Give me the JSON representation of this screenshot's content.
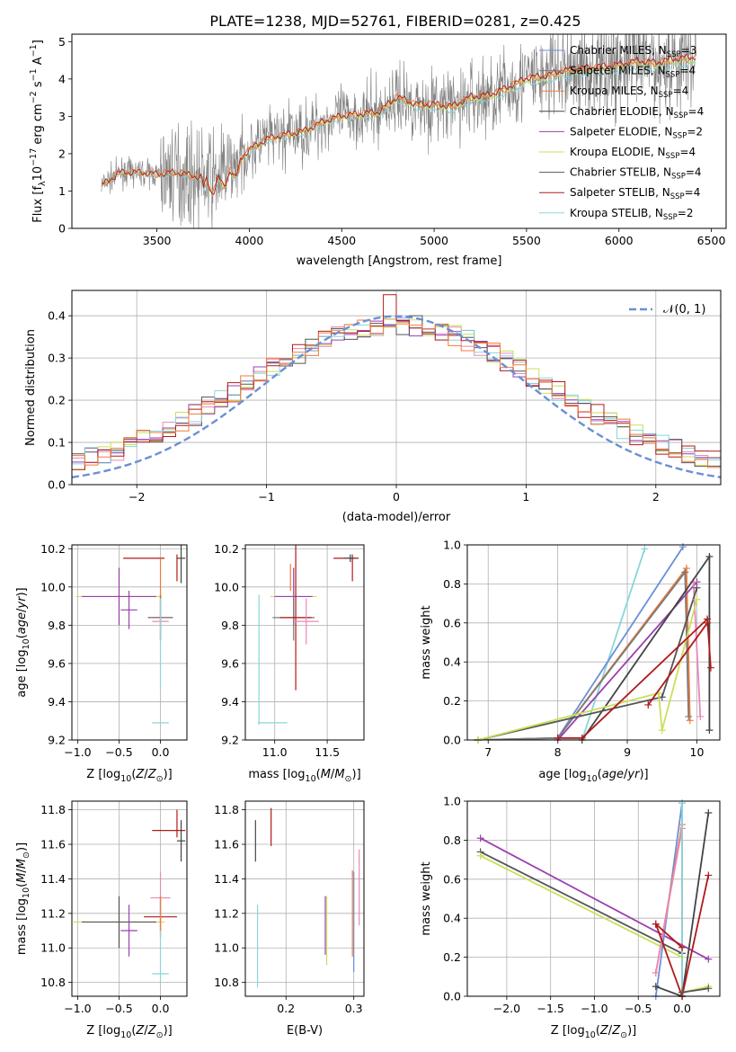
{
  "title": "PLATE=1238, MJD=52761, FIBERID=0281, z=0.425",
  "colors": {
    "Chabrier MILES": "#6b8fd6",
    "Salpeter MILES": "#7b7b7b",
    "Kroupa MILES": "#f07a3a",
    "Chabrier ELODIE": "#444444",
    "Salpeter ELODIE": "#9b3fb0",
    "Kroupa ELODIE": "#c8e05a",
    "Chabrier STELIB": "#555555",
    "Salpeter STELIB": "#b01a1a",
    "Kroupa STELIB": "#88d6dc",
    "pink": "#e888b8",
    "gaussian": "#6b8fd6"
  },
  "chart_data": [
    {
      "id": "spectrum",
      "type": "line",
      "xlabel": "wavelength [Angstrom, rest frame]",
      "ylabel": "Flux [f_λ 10^-17 erg cm^-2 s^-1 A^-1]",
      "xlim": [
        3040,
        6580
      ],
      "ylim": [
        0,
        5.2
      ],
      "xticks": [
        3500,
        4000,
        4500,
        5000,
        5500,
        6000,
        6500
      ],
      "yticks": [
        0,
        1,
        2,
        3,
        4,
        5
      ],
      "legend_position": "top-right",
      "legend": [
        {
          "label": "Chabrier MILES, N",
          "sub": "SSP",
          "suffix": "=3",
          "color": "#6b8fd6"
        },
        {
          "label": "Salpeter MILES, N",
          "sub": "SSP",
          "suffix": "=4",
          "color": "#7b7b7b"
        },
        {
          "label": "Kroupa MILES, N",
          "sub": "SSP",
          "suffix": "=4",
          "color": "#f07a3a"
        },
        {
          "label": "Chabrier ELODIE, N",
          "sub": "SSP",
          "suffix": "=4",
          "color": "#444444"
        },
        {
          "label": "Salpeter ELODIE, N",
          "sub": "SSP",
          "suffix": "=2",
          "color": "#9b3fb0"
        },
        {
          "label": "Kroupa ELODIE, N",
          "sub": "SSP",
          "suffix": "=4",
          "color": "#c8e05a"
        },
        {
          "label": "Chabrier STELIB, N",
          "sub": "SSP",
          "suffix": "=4",
          "color": "#555555"
        },
        {
          "label": "Salpeter STELIB, N",
          "sub": "SSP",
          "suffix": "=4",
          "color": "#b01a1a"
        },
        {
          "label": "Kroupa STELIB, N",
          "sub": "SSP",
          "suffix": "=2",
          "color": "#88d6dc"
        }
      ],
      "continuum": [
        [
          3200,
          1.15
        ],
        [
          3300,
          1.5
        ],
        [
          3400,
          1.5
        ],
        [
          3500,
          1.45
        ],
        [
          3600,
          1.5
        ],
        [
          3700,
          1.4
        ],
        [
          3800,
          1.3
        ],
        [
          3900,
          1.6
        ],
        [
          4000,
          2.1
        ],
        [
          4100,
          2.4
        ],
        [
          4200,
          2.5
        ],
        [
          4300,
          2.6
        ],
        [
          4400,
          2.85
        ],
        [
          4500,
          3.0
        ],
        [
          4600,
          3.05
        ],
        [
          4700,
          3.1
        ],
        [
          4800,
          3.5
        ],
        [
          4900,
          3.3
        ],
        [
          5000,
          3.3
        ],
        [
          5100,
          3.25
        ],
        [
          5200,
          3.5
        ],
        [
          5300,
          3.55
        ],
        [
          5400,
          3.75
        ],
        [
          5500,
          4.0
        ],
        [
          5600,
          4.05
        ],
        [
          5700,
          4.2
        ],
        [
          5800,
          4.25
        ],
        [
          5900,
          4.3
        ],
        [
          6000,
          4.35
        ],
        [
          6100,
          4.45
        ],
        [
          6200,
          4.4
        ],
        [
          6300,
          4.5
        ],
        [
          6420,
          4.55
        ]
      ]
    },
    {
      "id": "residuals",
      "type": "histogram",
      "xlabel": "(data-model)/error",
      "ylabel": "Normed distribution",
      "xlim": [
        -2.5,
        2.5
      ],
      "ylim": [
        0,
        0.46
      ],
      "xticks": [
        -2,
        -1,
        0,
        1,
        2
      ],
      "yticks": [
        0.0,
        0.1,
        0.2,
        0.3,
        0.4
      ],
      "legend": "𝒩(0, 1)",
      "legend_position": "top-right",
      "bin_width": 0.1,
      "bin_start": -2.5
    },
    {
      "id": "age-vs-Z",
      "type": "errorbar",
      "xlabel": "Z [log10(Z/Z⊙)]",
      "ylabel": "age  [log10(age/yr)]",
      "xlim": [
        -1.07,
        0.32
      ],
      "ylim": [
        9.2,
        10.22
      ],
      "xticks": [
        -1.0,
        -0.5,
        0.0
      ],
      "yticks": [
        9.2,
        9.4,
        9.6,
        9.8,
        10.0,
        10.2
      ],
      "points": [
        {
          "x": -0.5,
          "y": 9.95,
          "xerr": 0.52,
          "yerr": 0.15,
          "color": "#c8e05a"
        },
        {
          "x": -0.5,
          "y": 9.95,
          "xerr": 0.45,
          "yerr": 0.15,
          "color": "#9b3fb0"
        },
        {
          "x": -0.38,
          "y": 9.88,
          "xerr": 0.1,
          "yerr": 0.1,
          "color": "#9b3fb0"
        },
        {
          "x": 0.0,
          "y": 9.84,
          "xerr": 0.15,
          "yerr": 0.12,
          "color": "#b01a1a"
        },
        {
          "x": 0.0,
          "y": 9.84,
          "xerr": 0.15,
          "yerr": 0.12,
          "color": "#7b7b7b"
        },
        {
          "x": 0.0,
          "y": 9.82,
          "xerr": 0.1,
          "yerr": 0.1,
          "color": "#e888b8"
        },
        {
          "x": 0.0,
          "y": 9.7,
          "xerr": 0.0,
          "yerr": 0.24,
          "color": "#88d6dc"
        },
        {
          "x": -0.2,
          "y": 10.15,
          "xerr": 0.25,
          "yerr": 0.0,
          "color": "#b01a1a"
        },
        {
          "x": 0.2,
          "y": 10.1,
          "xerr": 0.0,
          "yerr": 0.07,
          "color": "#b01a1a"
        },
        {
          "x": 0.25,
          "y": 10.15,
          "xerr": 0.05,
          "yerr": 0.13,
          "color": "#444444"
        },
        {
          "x": 0.0,
          "y": 10.05,
          "xerr": 0.0,
          "yerr": 0.1,
          "color": "#f07a3a"
        },
        {
          "x": 0.0,
          "y": 9.29,
          "xerr": 0.1,
          "yerr": 0.0,
          "color": "#88d6dc"
        }
      ]
    },
    {
      "id": "age-vs-mass",
      "type": "errorbar",
      "xlabel": "mass [log10(M/M⊙)]",
      "ylabel": "",
      "xlim": [
        10.72,
        11.85
      ],
      "ylim": [
        9.2,
        10.22
      ],
      "xticks": [
        11.0,
        11.5
      ],
      "yticks": [
        9.2,
        9.4,
        9.6,
        9.8,
        10.0,
        10.2
      ],
      "points": [
        {
          "x": 11.18,
          "y": 9.95,
          "xerr": 0.22,
          "yerr": 0.15,
          "color": "#c8e05a"
        },
        {
          "x": 11.18,
          "y": 9.95,
          "xerr": 0.18,
          "yerr": 0.15,
          "color": "#9b3fb0"
        },
        {
          "x": 11.18,
          "y": 9.84,
          "xerr": 0.2,
          "yerr": 0.12,
          "color": "#7b7b7b"
        },
        {
          "x": 11.2,
          "y": 9.84,
          "xerr": 0.15,
          "yerr": 0.38,
          "color": "#b01a1a"
        },
        {
          "x": 11.3,
          "y": 9.82,
          "xerr": 0.12,
          "yerr": 0.12,
          "color": "#e888b8"
        },
        {
          "x": 10.85,
          "y": 9.62,
          "xerr": 0.0,
          "yerr": 0.34,
          "color": "#88d6dc"
        },
        {
          "x": 10.98,
          "y": 9.29,
          "xerr": 0.14,
          "yerr": 0.0,
          "color": "#88d6dc"
        },
        {
          "x": 11.68,
          "y": 10.15,
          "xerr": 0.12,
          "yerr": 0.0,
          "color": "#b01a1a"
        },
        {
          "x": 11.74,
          "y": 10.1,
          "xerr": 0.0,
          "yerr": 0.07,
          "color": "#b01a1a"
        },
        {
          "x": 11.72,
          "y": 10.15,
          "xerr": 0.06,
          "yerr": 0.02,
          "color": "#444444"
        },
        {
          "x": 11.15,
          "y": 10.05,
          "xerr": 0.0,
          "yerr": 0.07,
          "color": "#f07a3a"
        }
      ]
    },
    {
      "id": "weight-vs-age",
      "type": "line",
      "xlabel": "age  [log10(age/yr)]",
      "ylabel": "mass weight",
      "xlim": [
        6.7,
        10.33
      ],
      "ylim": [
        0,
        1.0
      ],
      "xticks": [
        7,
        8,
        9,
        10
      ],
      "yticks": [
        0.0,
        0.2,
        0.4,
        0.6,
        0.8,
        1.0
      ],
      "series": [
        {
          "color": "#88d6dc",
          "x": [
            6.85,
            8.35,
            9.25
          ],
          "y": [
            0.0,
            0.0,
            0.98
          ]
        },
        {
          "color": "#6b8fd6",
          "x": [
            6.85,
            8.0,
            9.8
          ],
          "y": [
            0.0,
            0.01,
            0.99
          ]
        },
        {
          "color": "#f07a3a",
          "x": [
            6.85,
            8.0,
            9.85,
            9.9
          ],
          "y": [
            0.0,
            0.01,
            0.88,
            0.1
          ]
        },
        {
          "color": "#7b7b7b",
          "x": [
            6.85,
            8.0,
            9.83,
            9.88
          ],
          "y": [
            0.0,
            0.01,
            0.86,
            0.12
          ]
        },
        {
          "color": "#9b3fb0",
          "x": [
            8.0,
            10.0
          ],
          "y": [
            0.0,
            0.81
          ]
        },
        {
          "color": "#e888b8",
          "x": [
            9.95,
            10.05
          ],
          "y": [
            0.81,
            0.12
          ]
        },
        {
          "color": "#444444",
          "x": [
            8.35,
            10.18,
            10.18
          ],
          "y": [
            0.0,
            0.94,
            0.05
          ]
        },
        {
          "color": "#555555",
          "x": [
            6.85,
            9.5,
            10.0
          ],
          "y": [
            0.0,
            0.22,
            0.78
          ]
        },
        {
          "color": "#c8e05a",
          "x": [
            6.85,
            9.45,
            9.5,
            10.0
          ],
          "y": [
            0.0,
            0.24,
            0.05,
            0.72
          ]
        },
        {
          "color": "#b01a1a",
          "x": [
            8.0,
            8.35,
            10.15,
            10.2
          ],
          "y": [
            0.01,
            0.01,
            0.62,
            0.37
          ]
        },
        {
          "color": "#b01a1a",
          "x": [
            9.3,
            10.15
          ],
          "y": [
            0.18,
            0.6
          ]
        }
      ]
    },
    {
      "id": "mass-vs-Z",
      "type": "errorbar",
      "xlabel": "Z [log10(Z/Z⊙)]",
      "ylabel": "mass [log10(M/M⊙)]",
      "xlim": [
        -1.07,
        0.32
      ],
      "ylim": [
        10.72,
        11.85
      ],
      "xticks": [
        -1.0,
        -0.5,
        0.0
      ],
      "yticks": [
        10.8,
        11.0,
        11.2,
        11.4,
        11.6,
        11.8
      ],
      "points": [
        {
          "x": -0.5,
          "y": 11.15,
          "xerr": 0.55,
          "yerr": 0.15,
          "color": "#c8e05a"
        },
        {
          "x": -0.5,
          "y": 11.15,
          "xerr": 0.45,
          "yerr": 0.15,
          "color": "#555555"
        },
        {
          "x": -0.38,
          "y": 11.1,
          "xerr": 0.1,
          "yerr": 0.15,
          "color": "#9b3fb0"
        },
        {
          "x": 0.0,
          "y": 11.18,
          "xerr": 0.2,
          "yerr": 0.12,
          "color": "#b01a1a"
        },
        {
          "x": 0.0,
          "y": 11.29,
          "xerr": 0.12,
          "yerr": 0.15,
          "color": "#e888b8"
        },
        {
          "x": 0.0,
          "y": 11.05,
          "xerr": 0.0,
          "yerr": 0.25,
          "color": "#88d6dc"
        },
        {
          "x": 0.0,
          "y": 10.85,
          "xerr": 0.1,
          "yerr": 0.0,
          "color": "#88d6dc"
        },
        {
          "x": 0.1,
          "y": 11.68,
          "xerr": 0.2,
          "yerr": 0.0,
          "color": "#b01a1a"
        },
        {
          "x": 0.2,
          "y": 11.72,
          "xerr": 0.0,
          "yerr": 0.08,
          "color": "#b01a1a"
        },
        {
          "x": 0.25,
          "y": 11.62,
          "xerr": 0.05,
          "yerr": 0.12,
          "color": "#444444"
        },
        {
          "x": 0.0,
          "y": 11.2,
          "xerr": 0.0,
          "yerr": 0.1,
          "color": "#f07a3a"
        }
      ]
    },
    {
      "id": "mass-vs-ebv",
      "type": "errorbar",
      "xlabel": "E(B-V)",
      "ylabel": "",
      "xlim": [
        0.14,
        0.315
      ],
      "ylim": [
        10.72,
        11.85
      ],
      "xticks": [
        0.2,
        0.3
      ],
      "yticks": [
        10.8,
        11.0,
        11.2,
        11.4,
        11.6,
        11.8
      ],
      "points": [
        {
          "x": 0.155,
          "y": 11.62,
          "xerr": 0.0,
          "yerr": 0.12,
          "color": "#444444"
        },
        {
          "x": 0.178,
          "y": 11.7,
          "xerr": 0.0,
          "yerr": 0.11,
          "color": "#b01a1a"
        },
        {
          "x": 0.158,
          "y": 11.01,
          "xerr": 0.0,
          "yerr": 0.24,
          "color": "#88d6dc"
        },
        {
          "x": 0.258,
          "y": 11.13,
          "xerr": 0.0,
          "yerr": 0.17,
          "color": "#9b3fb0"
        },
        {
          "x": 0.26,
          "y": 11.1,
          "xerr": 0.0,
          "yerr": 0.2,
          "color": "#c8e05a"
        },
        {
          "x": 0.298,
          "y": 11.2,
          "xerr": 0.0,
          "yerr": 0.25,
          "color": "#f07a3a"
        },
        {
          "x": 0.3,
          "y": 11.15,
          "xerr": 0.0,
          "yerr": 0.29,
          "color": "#6b8fd6"
        },
        {
          "x": 0.308,
          "y": 11.35,
          "xerr": 0.0,
          "yerr": 0.22,
          "color": "#e888b8"
        }
      ]
    },
    {
      "id": "weight-vs-Z",
      "type": "line",
      "xlabel": "Z [log10(Z/Z⊙)]",
      "ylabel": "mass weight",
      "xlim": [
        -2.45,
        0.43
      ],
      "ylim": [
        0,
        1.0
      ],
      "xticks": [
        -2.0,
        -1.5,
        -1.0,
        -0.5,
        0.0
      ],
      "yticks": [
        0.0,
        0.2,
        0.4,
        0.6,
        0.8,
        1.0
      ],
      "series": [
        {
          "color": "#9b3fb0",
          "x": [
            -2.3,
            0.3
          ],
          "y": [
            0.81,
            0.19
          ]
        },
        {
          "color": "#555555",
          "x": [
            -2.3,
            0.0
          ],
          "y": [
            0.74,
            0.22
          ]
        },
        {
          "color": "#c8e05a",
          "x": [
            -2.3,
            0.0
          ],
          "y": [
            0.72,
            0.2
          ]
        },
        {
          "color": "#6b8fd6",
          "x": [
            -0.3,
            0.0,
            0.0
          ],
          "y": [
            0.0,
            0.99,
            0.0
          ]
        },
        {
          "color": "#f07a3a",
          "x": [
            -0.3,
            0.0,
            0.0
          ],
          "y": [
            0.12,
            0.88,
            0.0
          ]
        },
        {
          "color": "#e888b8",
          "x": [
            -0.3,
            0.0
          ],
          "y": [
            0.12,
            0.86
          ]
        },
        {
          "color": "#88d6dc",
          "x": [
            0.0,
            0.0
          ],
          "y": [
            0.0,
            0.99
          ]
        },
        {
          "color": "#444444",
          "x": [
            -0.3,
            0.0,
            0.3
          ],
          "y": [
            0.05,
            0.0,
            0.94
          ]
        },
        {
          "color": "#b01a1a",
          "x": [
            -0.3,
            0.0,
            0.3
          ],
          "y": [
            0.37,
            0.0,
            0.62
          ]
        },
        {
          "color": "#b01a1a",
          "x": [
            -0.3,
            0.0
          ],
          "y": [
            0.37,
            0.25
          ]
        },
        {
          "color": "#c8e05a",
          "x": [
            0.0,
            0.3
          ],
          "y": [
            0.02,
            0.05
          ]
        },
        {
          "color": "#555555",
          "x": [
            0.0,
            0.3
          ],
          "y": [
            0.02,
            0.04
          ]
        }
      ]
    }
  ]
}
